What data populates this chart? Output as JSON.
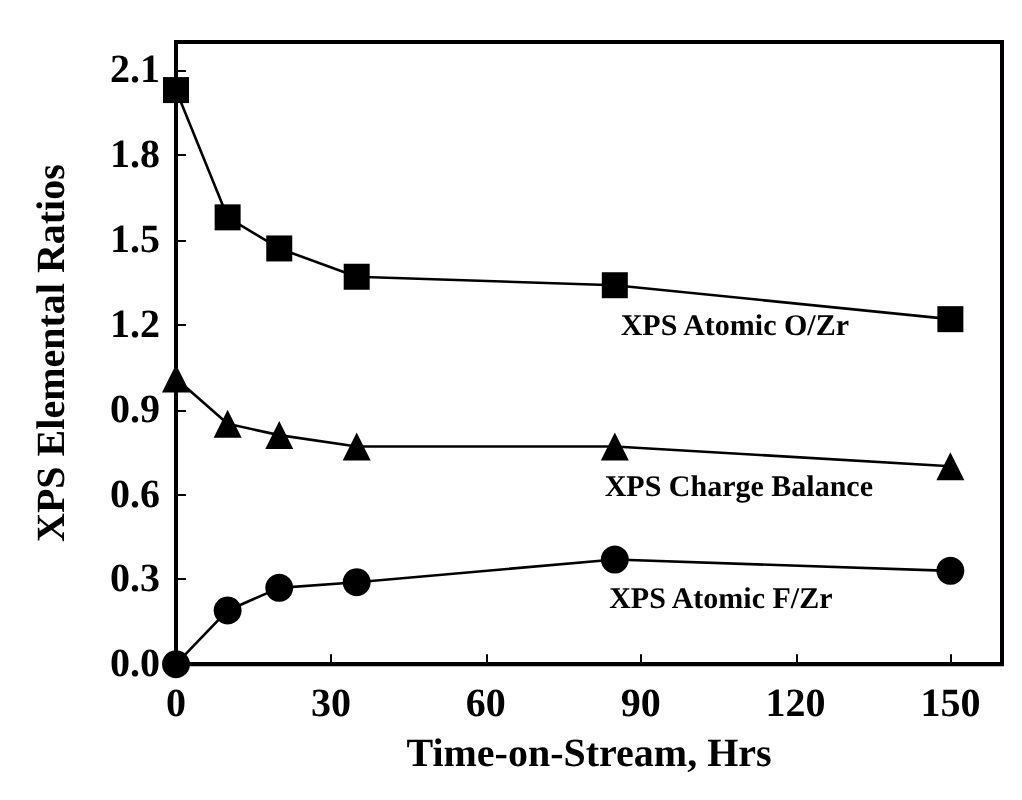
{
  "chart_data": {
    "type": "line",
    "xlabel": "Time-on-Stream, Hrs",
    "ylabel": "XPS Elemental Ratios",
    "xlim": [
      0,
      160
    ],
    "xticks": [
      0,
      30,
      60,
      90,
      120,
      150
    ],
    "ylim": [
      0,
      2.2
    ],
    "yticks": [
      {
        "value": 0,
        "label": "0.0"
      },
      0.3,
      0.6,
      0.9,
      1.2,
      1.5,
      1.8,
      2.1
    ],
    "grid": false,
    "legend": false,
    "line_style": "solid",
    "series": [
      {
        "name": "XPS Atomic O/Zr",
        "color": "#000000",
        "marker": "square",
        "x": [
          0,
          10,
          20,
          35,
          85,
          150
        ],
        "values": [
          2.03,
          1.58,
          1.47,
          1.37,
          1.34,
          1.22
        ]
      },
      {
        "name": "XPS Charge Balance",
        "color": "#000000",
        "marker": "triangle",
        "x": [
          0,
          10,
          20,
          35,
          85,
          150
        ],
        "values": [
          1.01,
          0.85,
          0.81,
          0.77,
          0.77,
          0.7
        ]
      },
      {
        "name": "XPS Atomic F/Zr",
        "color": "#000000",
        "marker": "circle",
        "x": [
          0,
          10,
          20,
          35,
          85,
          150
        ],
        "values": [
          0,
          0.19,
          0.27,
          0.29,
          0.37,
          0.33
        ]
      }
    ]
  }
}
